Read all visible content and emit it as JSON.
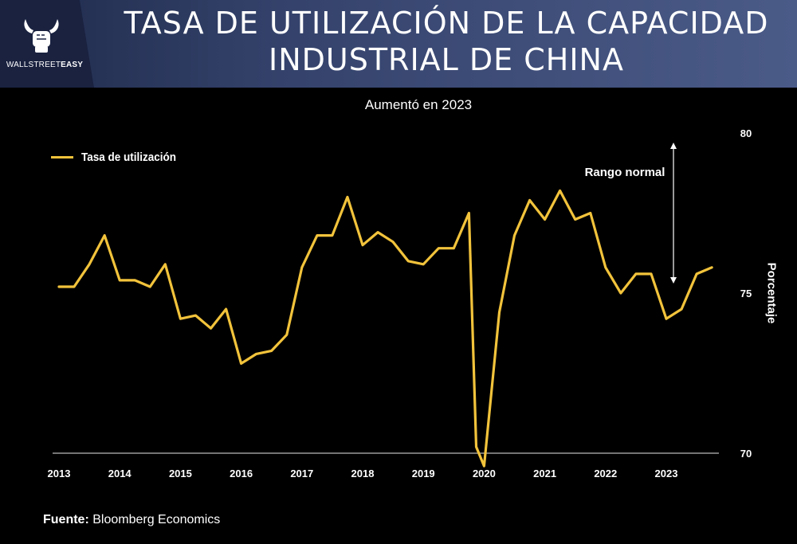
{
  "header": {
    "title_line1": "TASA DE UTILIZACIÓN DE LA CAPACIDAD",
    "title_line2": "INDUSTRIAL DE CHINA",
    "logo_text_regular": "WALLSTREET",
    "logo_text_bold": "EASY",
    "logo_icon": "bull-fist-icon"
  },
  "footer": {
    "source_label": "Fuente:",
    "source_value": "Bloomberg Economics"
  },
  "colors": {
    "line": "#f2c33b",
    "header_dark": "#1a2240",
    "header_light": "#4b5b88"
  },
  "chart_data": {
    "type": "line",
    "title": "Aumentó en 2023",
    "xlabel": "",
    "ylabel": "Porcentaje",
    "ylim": [
      70,
      80
    ],
    "yticks": [
      70,
      75,
      80
    ],
    "xlim": [
      2013,
      2024
    ],
    "x_tick_labels": [
      "2013",
      "2014",
      "2015",
      "2016",
      "2017",
      "2018",
      "2019",
      "2020",
      "2021",
      "2022",
      "2023"
    ],
    "legend": "top-left",
    "grid": false,
    "series": [
      {
        "name": "Tasa de utilización",
        "x": [
          2013.0,
          2013.25,
          2013.5,
          2013.75,
          2014.0,
          2014.25,
          2014.5,
          2014.75,
          2015.0,
          2015.25,
          2015.5,
          2015.75,
          2016.0,
          2016.25,
          2016.5,
          2016.75,
          2017.0,
          2017.25,
          2017.5,
          2017.75,
          2018.0,
          2018.25,
          2018.5,
          2018.75,
          2019.0,
          2019.25,
          2019.5,
          2019.75,
          2019.87,
          2020.0,
          2020.25,
          2020.5,
          2020.75,
          2021.0,
          2021.25,
          2021.5,
          2021.75,
          2022.0,
          2022.25,
          2022.5,
          2022.75,
          2023.0,
          2023.25,
          2023.5,
          2023.75
        ],
        "values": [
          75.2,
          75.2,
          75.9,
          76.8,
          75.4,
          75.4,
          75.2,
          75.9,
          74.2,
          74.3,
          73.9,
          74.5,
          72.8,
          73.1,
          73.2,
          73.7,
          75.8,
          76.8,
          76.8,
          78.0,
          76.5,
          76.9,
          76.6,
          76.0,
          75.9,
          76.4,
          76.4,
          77.5,
          70.2,
          69.6,
          74.4,
          76.8,
          77.9,
          77.3,
          78.2,
          77.3,
          77.5,
          75.8,
          75.0,
          75.6,
          75.6,
          74.2,
          74.5,
          75.6,
          75.8
        ]
      }
    ],
    "annotations": [
      {
        "text": "Rango normal",
        "arrow_from": 75.3,
        "arrow_to": 79.7,
        "direction": "both"
      }
    ]
  }
}
